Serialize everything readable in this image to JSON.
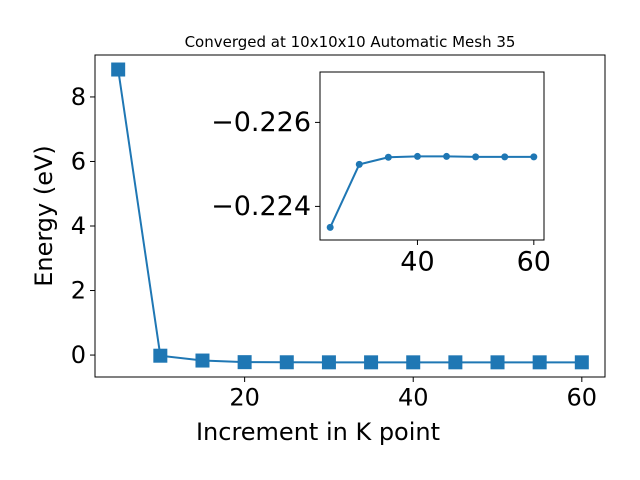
{
  "chart_data": [
    {
      "type": "line",
      "title": "Converged at 10x10x10 Automatic Mesh 35",
      "x_label": "Increment in K point",
      "y_label": "Energy (eV)",
      "x": [
        5,
        10,
        15,
        20,
        25,
        30,
        35,
        40,
        45,
        50,
        55,
        60
      ],
      "series": [
        {
          "color": "#1f77b4",
          "marker": "square",
          "values": [
            8.85,
            -0.02,
            -0.17,
            -0.22,
            -0.2235,
            -0.225,
            -0.2252,
            -0.2252,
            -0.2252,
            -0.2252,
            -0.2252,
            -0.2252
          ]
        }
      ],
      "xlim": [
        2.25,
        62.75
      ],
      "xticks": [
        20,
        40,
        60
      ],
      "ylim": [
        -0.68,
        9.3
      ],
      "yticks": [
        0,
        2,
        4,
        6,
        8
      ]
    },
    {
      "type": "line",
      "x": [
        25,
        30,
        35,
        40,
        45,
        50,
        55,
        60
      ],
      "series": [
        {
          "color": "#1f77b4",
          "marker": "circle",
          "values": [
            -0.2235,
            -0.225,
            -0.22517,
            -0.22519,
            -0.22519,
            -0.22518,
            -0.22518,
            -0.22518
          ]
        }
      ],
      "xlim": [
        23.25,
        61.75
      ],
      "xticks": [
        40,
        60
      ],
      "ylim": [
        -0.2232,
        -0.2272
      ],
      "yticks": [
        {
          "value": -0.226,
          "label": "−0.226"
        },
        {
          "value": -0.224,
          "label": "−0.224"
        }
      ]
    }
  ]
}
